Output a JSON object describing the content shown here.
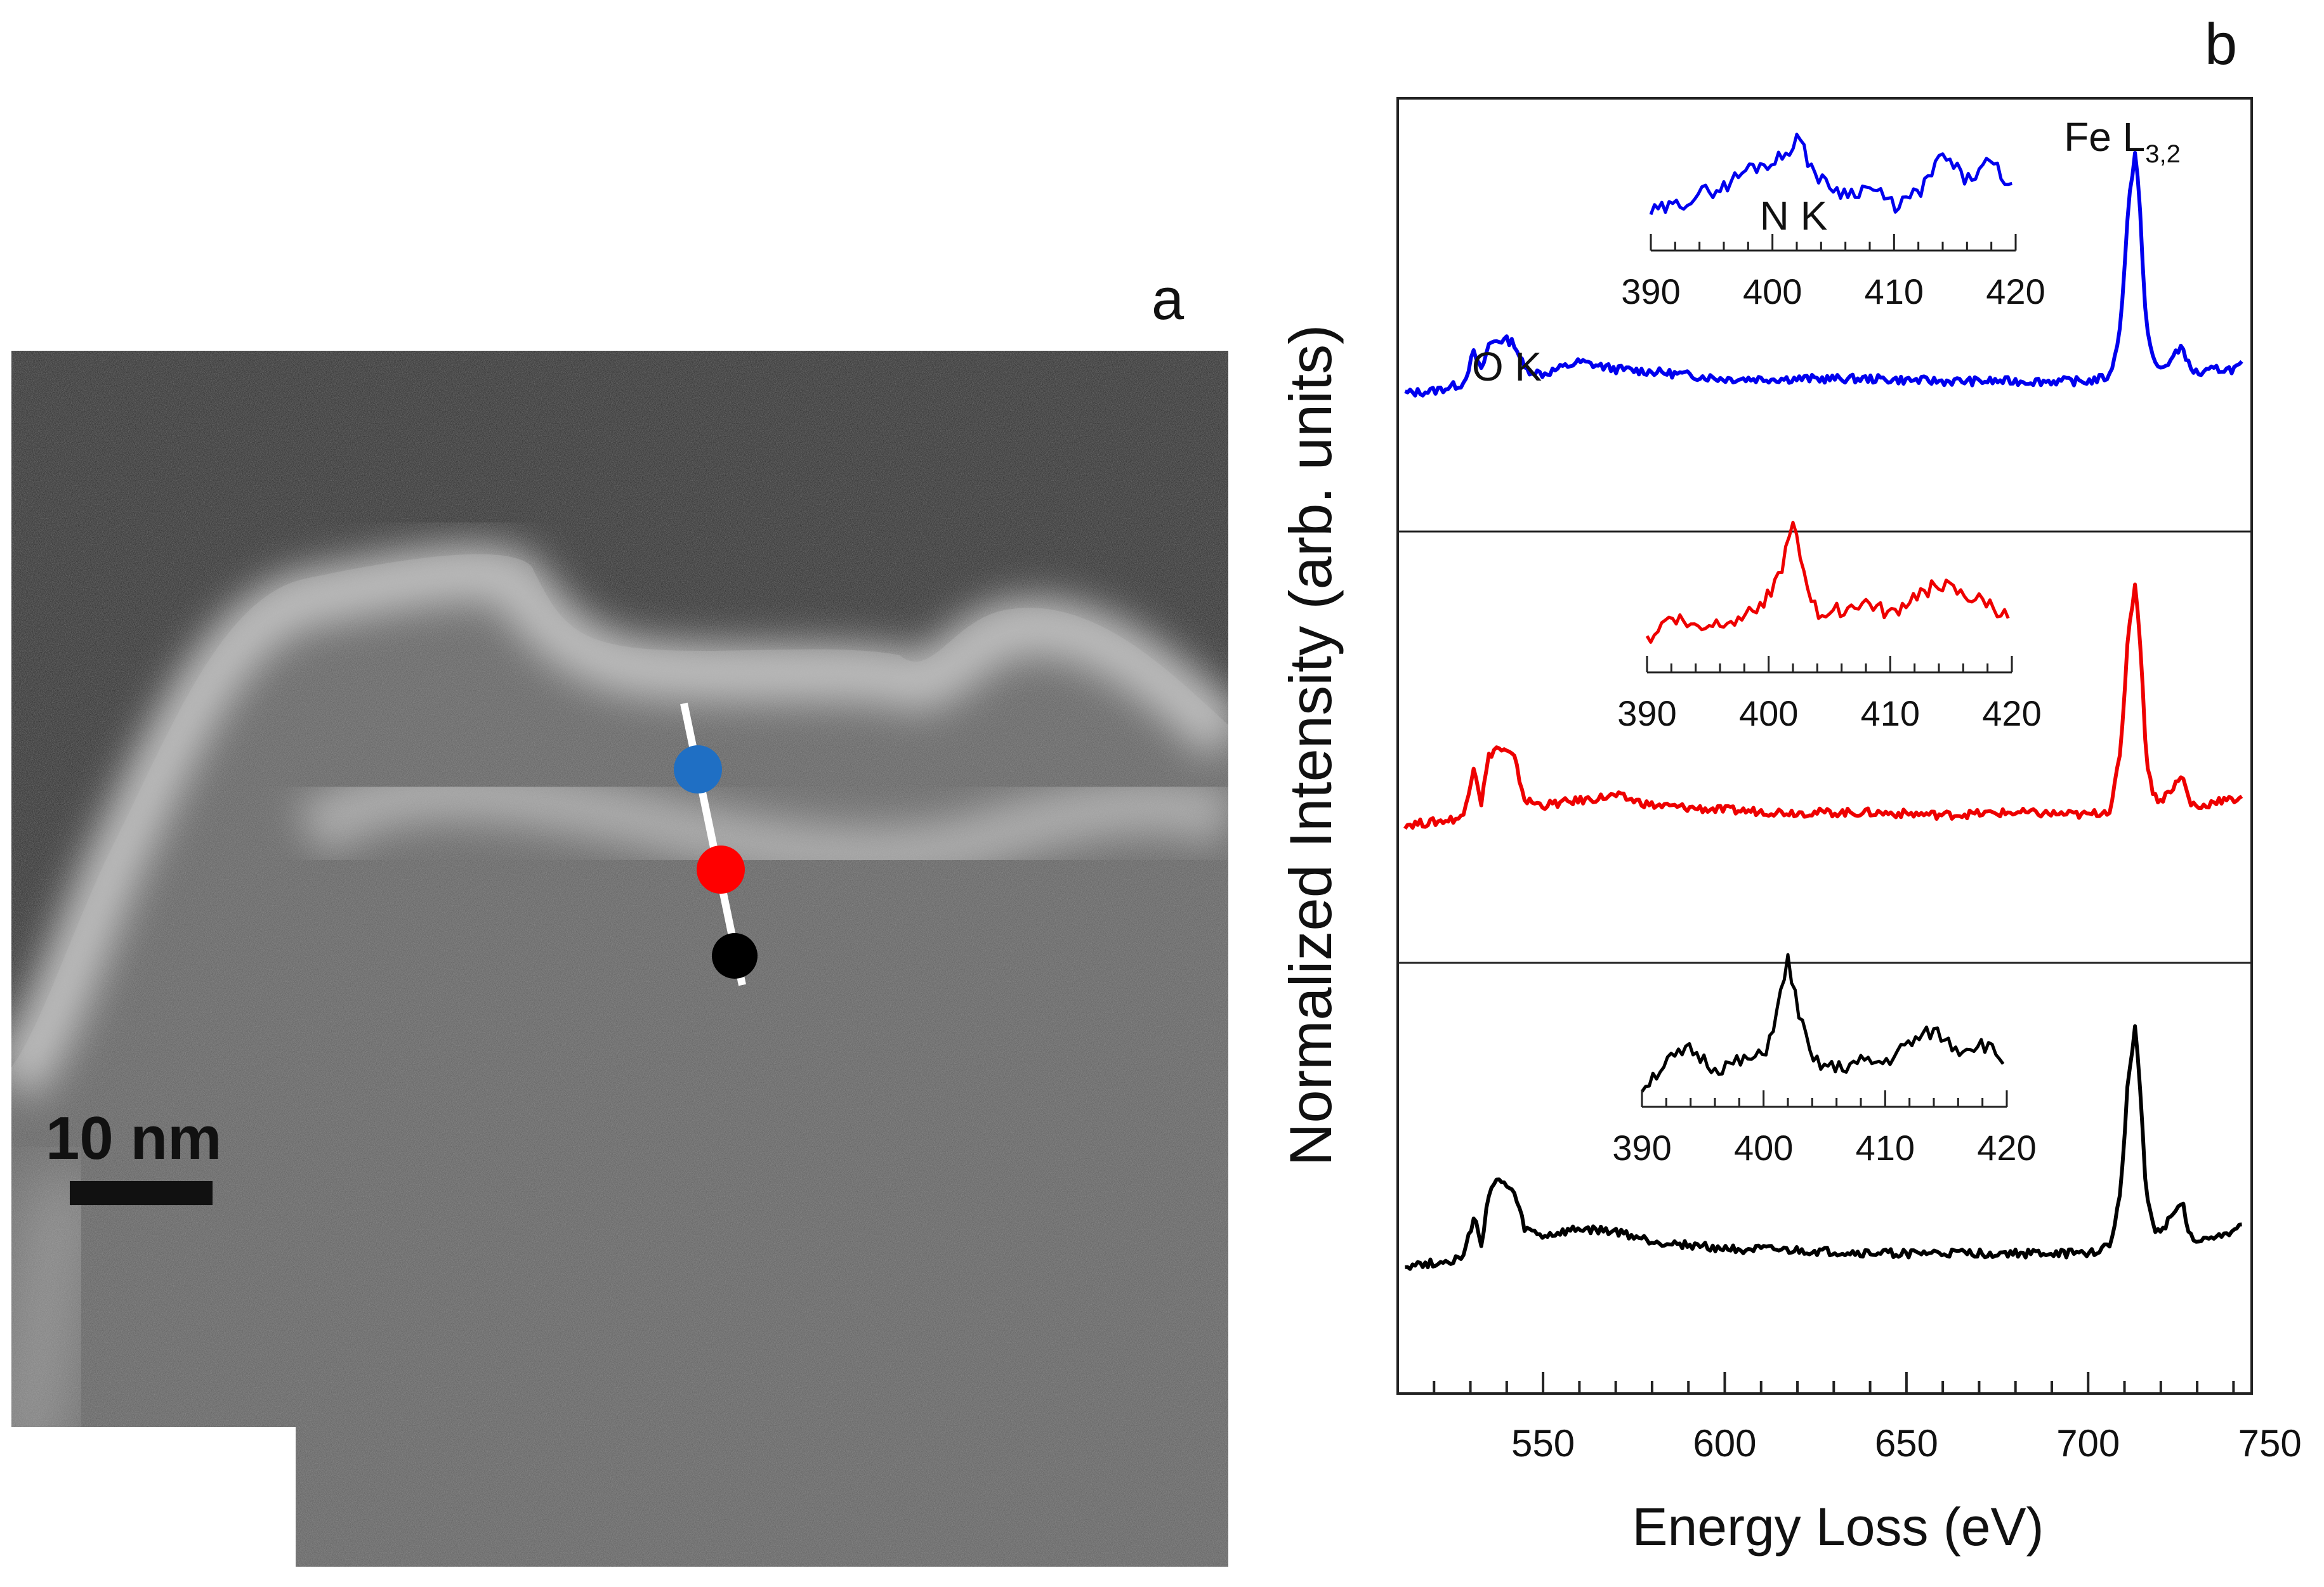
{
  "panels": {
    "a": {
      "letter": "a"
    },
    "b": {
      "letter": "b"
    }
  },
  "stem_image": {
    "scale_bar_label": "10 nm",
    "markers": [
      {
        "name": "blue",
        "color": "#1f6fc4"
      },
      {
        "name": "red",
        "color": "#ff0000"
      },
      {
        "name": "black",
        "color": "#000000"
      }
    ]
  },
  "chart_data": {
    "type": "line",
    "title": "",
    "xlabel": "Energy Loss (eV)",
    "ylabel": "Normalized Intensity (arb. units)",
    "xlim": [
      510,
      745
    ],
    "xticks": [
      550,
      600,
      650,
      700,
      750
    ],
    "peak_labels": {
      "ok": "O K",
      "nk": "N K",
      "fe_base": "Fe L",
      "fe_sub": "3,2"
    },
    "series": [
      {
        "name": "blue",
        "color": "#0000ee",
        "x": [
          512,
          520,
          528,
          531,
          533,
          535,
          537,
          540,
          542,
          545,
          550,
          560,
          570,
          580,
          600,
          620,
          640,
          660,
          680,
          700,
          706,
          709,
          711,
          713,
          714,
          716,
          718,
          720,
          723,
          726,
          728,
          731,
          735,
          740,
          743
        ],
        "y": [
          0.0,
          0.01,
          0.04,
          0.17,
          0.09,
          0.2,
          0.22,
          0.22,
          0.21,
          0.1,
          0.08,
          0.13,
          0.1,
          0.09,
          0.06,
          0.06,
          0.06,
          0.05,
          0.05,
          0.05,
          0.07,
          0.28,
          0.78,
          1.0,
          0.82,
          0.28,
          0.13,
          0.1,
          0.14,
          0.2,
          0.1,
          0.08,
          0.1,
          0.1,
          0.12
        ],
        "inset": {
          "x": [
            390,
            392,
            394,
            396,
            398,
            400,
            401,
            402,
            403,
            404,
            406,
            408,
            410,
            412,
            414,
            416,
            418,
            420
          ],
          "y": [
            0.15,
            0.2,
            0.3,
            0.35,
            0.5,
            0.55,
            0.6,
            0.75,
            0.55,
            0.4,
            0.3,
            0.35,
            0.2,
            0.3,
            0.6,
            0.4,
            0.55,
            0.3
          ]
        }
      },
      {
        "name": "red",
        "color": "#ee0000",
        "x": [
          512,
          520,
          528,
          531,
          533,
          535,
          537,
          540,
          542,
          545,
          550,
          560,
          570,
          580,
          600,
          620,
          640,
          660,
          680,
          700,
          706,
          709,
          711,
          713,
          714,
          716,
          718,
          720,
          723,
          726,
          728,
          731,
          735,
          740,
          743
        ],
        "y": [
          0.0,
          0.01,
          0.03,
          0.25,
          0.09,
          0.28,
          0.32,
          0.3,
          0.28,
          0.1,
          0.08,
          0.1,
          0.12,
          0.08,
          0.06,
          0.05,
          0.05,
          0.04,
          0.05,
          0.04,
          0.06,
          0.3,
          0.8,
          1.0,
          0.84,
          0.28,
          0.12,
          0.1,
          0.15,
          0.2,
          0.09,
          0.07,
          0.1,
          0.1,
          0.13
        ],
        "inset": {
          "x": [
            390,
            392,
            394,
            396,
            398,
            400,
            401,
            402,
            403,
            404,
            406,
            408,
            410,
            412,
            414,
            416,
            418,
            420
          ],
          "y": [
            0.1,
            0.3,
            0.2,
            0.25,
            0.3,
            0.45,
            0.65,
            1.0,
            0.6,
            0.3,
            0.35,
            0.4,
            0.3,
            0.45,
            0.55,
            0.45,
            0.4,
            0.25
          ]
        }
      },
      {
        "name": "black",
        "color": "#000000",
        "x": [
          512,
          520,
          528,
          531,
          533,
          535,
          537,
          540,
          542,
          545,
          550,
          560,
          570,
          580,
          600,
          620,
          640,
          660,
          680,
          700,
          706,
          709,
          711,
          713,
          714,
          716,
          718,
          720,
          723,
          726,
          728,
          731,
          735,
          740,
          743
        ],
        "y": [
          0.0,
          0.01,
          0.03,
          0.2,
          0.08,
          0.3,
          0.35,
          0.33,
          0.3,
          0.15,
          0.12,
          0.15,
          0.14,
          0.1,
          0.07,
          0.06,
          0.05,
          0.05,
          0.05,
          0.05,
          0.08,
          0.3,
          0.78,
          1.0,
          0.8,
          0.3,
          0.16,
          0.14,
          0.2,
          0.26,
          0.12,
          0.1,
          0.13,
          0.14,
          0.17
        ],
        "inset": {
          "x": [
            390,
            392,
            394,
            396,
            398,
            400,
            401,
            402,
            403,
            404,
            406,
            408,
            410,
            412,
            414,
            416,
            418,
            420
          ],
          "y": [
            0.0,
            0.2,
            0.3,
            0.15,
            0.2,
            0.25,
            0.55,
            1.0,
            0.55,
            0.2,
            0.15,
            0.2,
            0.2,
            0.35,
            0.45,
            0.3,
            0.35,
            0.2
          ]
        }
      }
    ],
    "inset": {
      "xlim": [
        390,
        420
      ],
      "xticks": [
        390,
        400,
        410,
        420
      ]
    }
  }
}
